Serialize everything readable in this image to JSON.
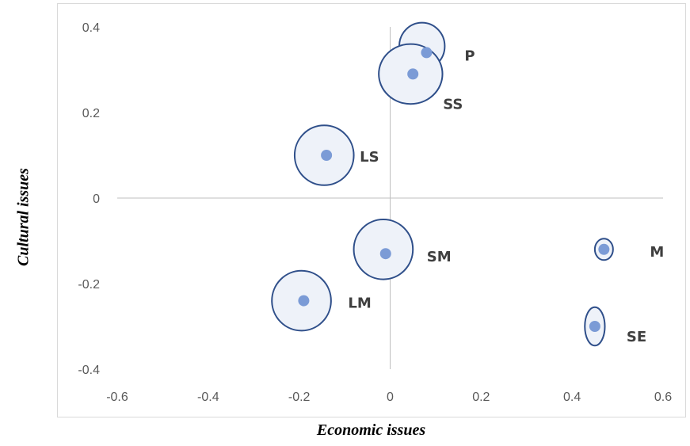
{
  "chart_data": {
    "type": "scatter",
    "title": "",
    "xlabel": "Economic issues",
    "ylabel": "Cultural issues",
    "xlim": [
      -0.6,
      0.6
    ],
    "ylim": [
      -0.4,
      0.4
    ],
    "xticks": [
      -0.6,
      -0.4,
      -0.2,
      0,
      0.2,
      0.4,
      0.6
    ],
    "yticks": [
      -0.4,
      -0.2,
      0,
      0.2,
      0.4
    ],
    "xtick_labels": [
      "-0.6",
      "-0.4",
      "-0.2",
      "0",
      "0.2",
      "0.4",
      "0.6"
    ],
    "ytick_labels": [
      "-0.4",
      "-0.2",
      "0",
      "0.2",
      "0.4"
    ],
    "grid": false,
    "point_color": "#7b9bd6",
    "ellipse_color": "#2f4f8a",
    "ellipse_fill": "#eef2f9",
    "points": [
      {
        "label": "P",
        "x": 0.08,
        "y": 0.34,
        "ex": 0.05,
        "ey": 0.055,
        "ecx": 0.07,
        "ecy": 0.355
      },
      {
        "label": "SS",
        "x": 0.05,
        "y": 0.29,
        "ex": 0.07,
        "ey": 0.07,
        "ecx": 0.045,
        "ecy": 0.29
      },
      {
        "label": "LS",
        "x": -0.14,
        "y": 0.1,
        "ex": 0.065,
        "ey": 0.07,
        "ecx": -0.145,
        "ecy": 0.1
      },
      {
        "label": "SM",
        "x": -0.01,
        "y": -0.13,
        "ex": 0.065,
        "ey": 0.07,
        "ecx": -0.015,
        "ecy": -0.12
      },
      {
        "label": "LM",
        "x": -0.19,
        "y": -0.24,
        "ex": 0.065,
        "ey": 0.07,
        "ecx": -0.195,
        "ecy": -0.24
      },
      {
        "label": "M",
        "x": 0.47,
        "y": -0.12,
        "ex": 0.02,
        "ey": 0.025,
        "ecx": 0.47,
        "ecy": -0.12
      },
      {
        "label": "SE",
        "x": 0.45,
        "y": -0.3,
        "ex": 0.022,
        "ey": 0.045,
        "ecx": 0.45,
        "ecy": -0.3
      }
    ]
  }
}
